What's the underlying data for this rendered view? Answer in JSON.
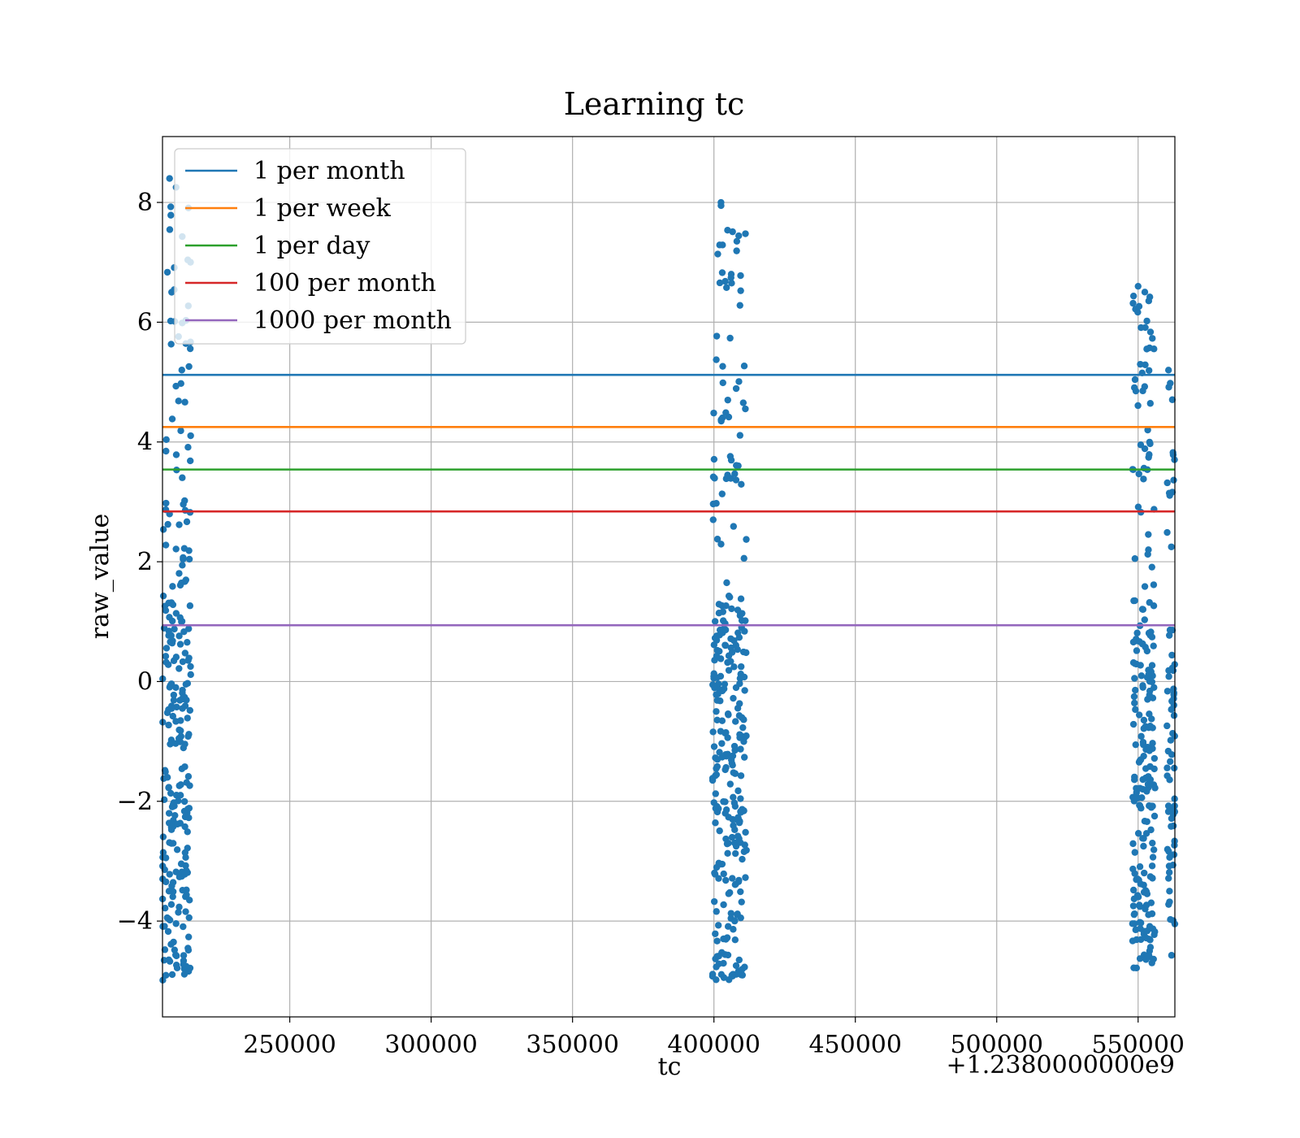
{
  "chart_data": {
    "type": "scatter",
    "title": "Learning tc",
    "xlabel": "tc",
    "ylabel": "raw_value",
    "x_offset_label": "+1.2380000000e9",
    "xlim": [
      205000,
      563000
    ],
    "ylim": [
      -5.6,
      9.1
    ],
    "x_ticks": [
      250000,
      300000,
      350000,
      400000,
      450000,
      500000,
      550000
    ],
    "x_tick_labels": [
      "250000",
      "300000",
      "350000",
      "400000",
      "450000",
      "500000",
      "550000"
    ],
    "y_ticks": [
      -4,
      -2,
      0,
      2,
      4,
      6,
      8
    ],
    "y_tick_labels": [
      "−4",
      "−2",
      "0",
      "2",
      "4",
      "6",
      "8"
    ],
    "grid": true,
    "legend_position": "top-left",
    "scatter_color": "#1f77b4",
    "clusters": [
      {
        "x_min": 205000,
        "x_max": 215000,
        "y_min": -5.0,
        "y_max": 8.4
      },
      {
        "x_min": 399500,
        "x_max": 411500,
        "y_min": -5.0,
        "y_max": 8.0
      },
      {
        "x_min": 548000,
        "x_max": 556000,
        "y_min": -4.8,
        "y_max": 6.6
      },
      {
        "x_min": 560000,
        "x_max": 563000,
        "y_min": -4.6,
        "y_max": 5.2
      }
    ],
    "lines": [
      {
        "name": "1 per month",
        "y": 5.12,
        "color": "#1f77b4"
      },
      {
        "name": "1 per week",
        "y": 4.25,
        "color": "#ff7f0e"
      },
      {
        "name": "1 per day",
        "y": 3.54,
        "color": "#2ca02c"
      },
      {
        "name": "100 per month",
        "y": 2.84,
        "color": "#d62728"
      },
      {
        "name": "1000 per month",
        "y": 0.94,
        "color": "#9467bd"
      }
    ]
  }
}
